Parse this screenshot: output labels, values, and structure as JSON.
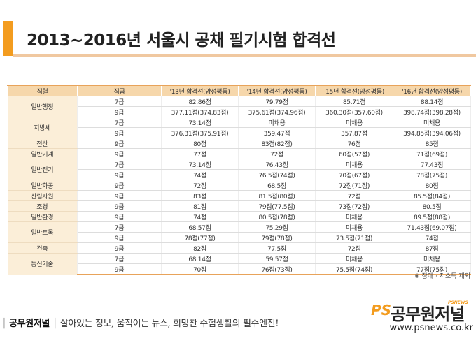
{
  "title": "2013~2016년 서울시 공채 필기시험 합격선",
  "table": {
    "headers": [
      "직렬",
      "직급",
      "'13년 합격선(양성평등)",
      "'14년 합격선(양성평등)",
      "'15년 합격선(양성평등)",
      "'16년 합격선(양성평등)"
    ],
    "groups": [
      {
        "role": "일반행정",
        "rows": [
          {
            "grade": "7급",
            "y13": "82.86점",
            "y14": "79.79점",
            "y15": "85.71점",
            "y16": "88.14점"
          },
          {
            "grade": "9급",
            "y13": "377.11점(374.83점)",
            "y14": "375.61점(374.96점)",
            "y15": "360.30점(357.60점)",
            "y16": "398.74점(398.28점)"
          }
        ]
      },
      {
        "role": "지방세",
        "rows": [
          {
            "grade": "7급",
            "y13": "73.14점",
            "y14": "미채용",
            "y15": "미채용",
            "y16": "미채용"
          },
          {
            "grade": "9급",
            "y13": "376.31점(375.91점)",
            "y14": "359.47점",
            "y15": "357.87점",
            "y16": "394.85점(394.06점)"
          }
        ]
      },
      {
        "role": "전산",
        "rows": [
          {
            "grade": "9급",
            "y13": "80점",
            "y14": "83점(82점)",
            "y15": "76점",
            "y16": "85점"
          }
        ]
      },
      {
        "role": "일반기계",
        "rows": [
          {
            "grade": "9급",
            "y13": "77점",
            "y14": "72점",
            "y15": "60점(57점)",
            "y16": "71점(69점)"
          }
        ]
      },
      {
        "role": "일반전기",
        "rows": [
          {
            "grade": "7급",
            "y13": "73.14점",
            "y14": "76.43점",
            "y15": "미채용",
            "y16": "77.43점"
          },
          {
            "grade": "9급",
            "y13": "74점",
            "y14": "76.5점(74점)",
            "y15": "70점(67점)",
            "y16": "78점(75점)"
          }
        ]
      },
      {
        "role": "일반화공",
        "rows": [
          {
            "grade": "9급",
            "y13": "72점",
            "y14": "68.5점",
            "y15": "72점(71점)",
            "y16": "80점"
          }
        ]
      },
      {
        "role": "산림자원",
        "rows": [
          {
            "grade": "9급",
            "y13": "83점",
            "y14": "81.5점(80점)",
            "y15": "72점",
            "y16": "85.5점(84점)"
          }
        ]
      },
      {
        "role": "조경",
        "rows": [
          {
            "grade": "9급",
            "y13": "81점",
            "y14": "79점(77.5점)",
            "y15": "73점(72점)",
            "y16": "80.5점"
          }
        ]
      },
      {
        "role": "일반환경",
        "rows": [
          {
            "grade": "9급",
            "y13": "74점",
            "y14": "80.5점(78점)",
            "y15": "미채용",
            "y16": "89.5점(88점)"
          }
        ]
      },
      {
        "role": "일반토목",
        "rows": [
          {
            "grade": "7급",
            "y13": "68.57점",
            "y14": "75.29점",
            "y15": "미채용",
            "y16": "71.43점(69.07점)"
          },
          {
            "grade": "9급",
            "y13": "78점(77점)",
            "y14": "79점(78점)",
            "y15": "73.5점(71점)",
            "y16": "74점"
          }
        ]
      },
      {
        "role": "건축",
        "rows": [
          {
            "grade": "9급",
            "y13": "82점",
            "y14": "77.5점",
            "y15": "72점",
            "y16": "87점"
          }
        ]
      },
      {
        "role": "통신기술",
        "rows": [
          {
            "grade": "7급",
            "y13": "68.14점",
            "y14": "59.57점",
            "y15": "미채용",
            "y16": "미채용"
          },
          {
            "grade": "9급",
            "y13": "70점",
            "y14": "76점(73점)",
            "y15": "75.5점(74점)",
            "y16": "77점(75점)"
          }
        ]
      }
    ]
  },
  "note": "※ 장애 · 저소득 제외",
  "footer": {
    "brand": "공무원저널",
    "slogan": "살아있는 정보, 움직이는 뉴스, 희망찬 수험생활의 필수엔진!",
    "logo_ps": "PS",
    "logo_name": "공무원저널",
    "logo_sub": "PSNEWS",
    "url": "www.psnews.co.kr"
  },
  "colors": {
    "accent": "#f39c1f",
    "header_bg": "#f6d7ab",
    "role_bg": "#fbeed8"
  }
}
